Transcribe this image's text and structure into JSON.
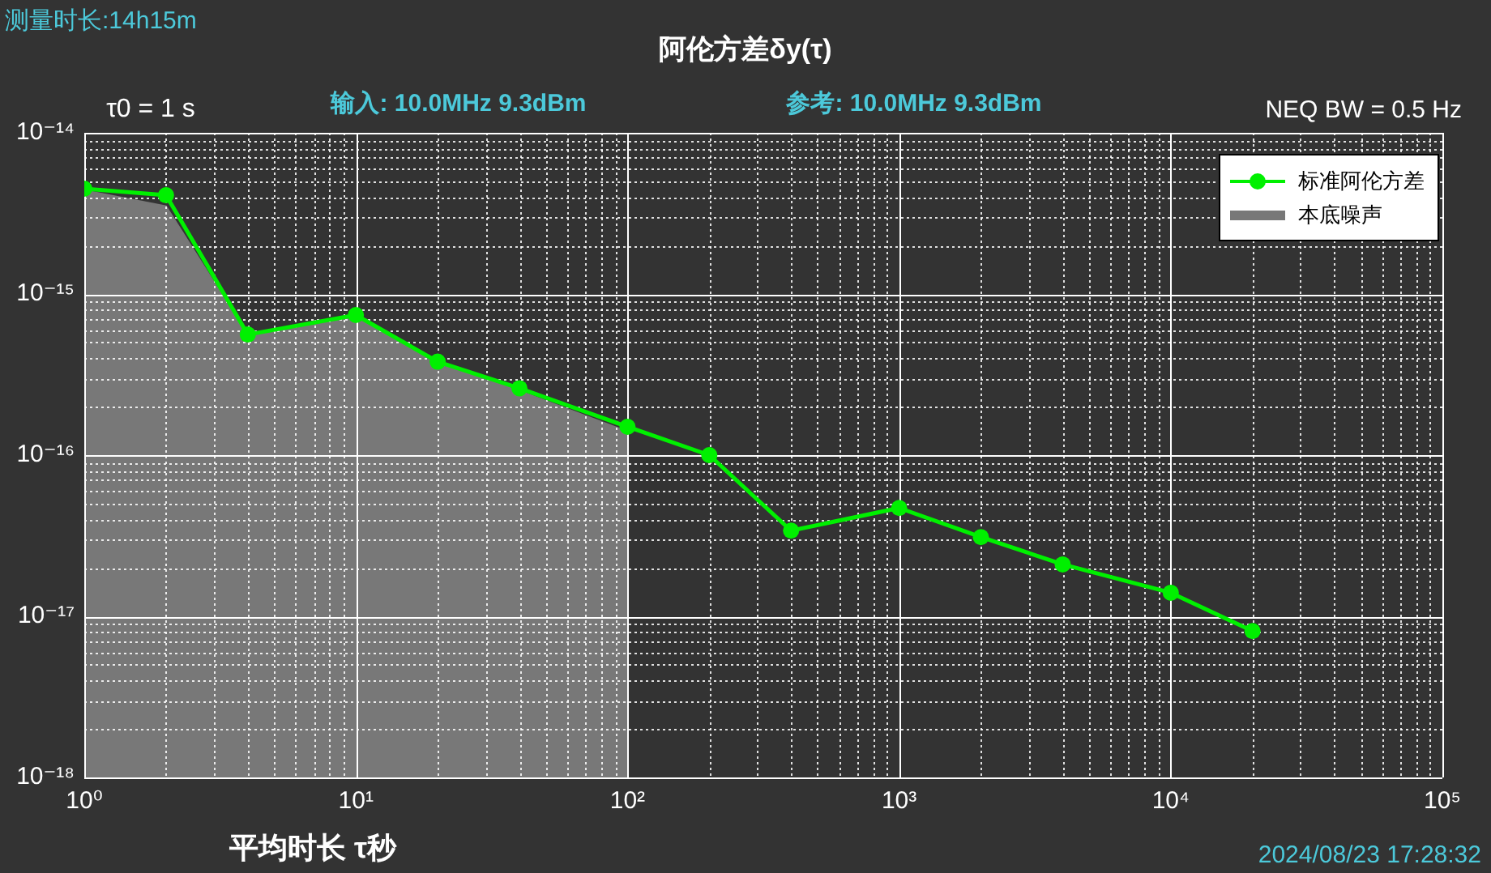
{
  "chart_data": {
    "type": "line",
    "title": "阿伦方差δy(τ)",
    "xlabel": "平均时长 τ秒",
    "annotations": [
      "测量时长:14h15m",
      "τ0 = 1 s",
      "输入: 10.0MHz 9.3dBm",
      "参考: 10.0MHz 9.3dBm",
      "NEQ BW = 0.5 Hz",
      "2024/08/23 17:28:32"
    ],
    "series": [
      {
        "name": "标准阿伦方差",
        "color": "#00f000",
        "marker": "circle",
        "x": [
          1,
          2,
          4,
          10,
          20,
          40,
          100,
          200,
          400,
          1000,
          2000,
          4000,
          10000,
          20000
        ],
        "values": [
          4.5e-15,
          4.1e-15,
          5.6e-16,
          7.4e-16,
          3.8e-16,
          2.6e-16,
          1.5e-16,
          1e-16,
          3.4e-17,
          4.7e-17,
          3.1e-17,
          2.1e-17,
          1.4e-17,
          8.1e-18
        ]
      },
      {
        "name": "本底噪声",
        "type": "area",
        "color": "#787878",
        "x": [
          1,
          2,
          4,
          10,
          20,
          40,
          100
        ],
        "values": [
          4.4e-15,
          3.5e-15,
          5.5e-16,
          7.2e-16,
          3.7e-16,
          2.5e-16,
          1.4e-16
        ]
      }
    ],
    "xlim": [
      1,
      100000
    ],
    "ylim": [
      1e-18,
      1e-14
    ],
    "xticks": [
      {
        "value": 1,
        "label": "10⁰"
      },
      {
        "value": 2,
        "label": null
      },
      {
        "value": 3,
        "label": null
      },
      {
        "value": 4,
        "label": null
      },
      {
        "value": 5,
        "label": null
      },
      {
        "value": 6,
        "label": null
      },
      {
        "value": 7,
        "label": null
      },
      {
        "value": 8,
        "label": null
      },
      {
        "value": 9,
        "label": null
      },
      {
        "value": 10,
        "label": "10¹"
      },
      {
        "value": 20,
        "label": null
      },
      {
        "value": 30,
        "label": null
      },
      {
        "value": 40,
        "label": null
      },
      {
        "value": 50,
        "label": null
      },
      {
        "value": 60,
        "label": null
      },
      {
        "value": 70,
        "label": null
      },
      {
        "value": 80,
        "label": null
      },
      {
        "value": 90,
        "label": null
      },
      {
        "value": 100,
        "label": "10²"
      },
      {
        "value": 200,
        "label": null
      },
      {
        "value": 300,
        "label": null
      },
      {
        "value": 400,
        "label": null
      },
      {
        "value": 500,
        "label": null
      },
      {
        "value": 600,
        "label": null
      },
      {
        "value": 700,
        "label": null
      },
      {
        "value": 800,
        "label": null
      },
      {
        "value": 900,
        "label": null
      },
      {
        "value": 1000,
        "label": "10³"
      },
      {
        "value": 2000,
        "label": null
      },
      {
        "value": 3000,
        "label": null
      },
      {
        "value": 4000,
        "label": null
      },
      {
        "value": 5000,
        "label": null
      },
      {
        "value": 6000,
        "label": null
      },
      {
        "value": 7000,
        "label": null
      },
      {
        "value": 8000,
        "label": null
      },
      {
        "value": 9000,
        "label": null
      },
      {
        "value": 10000,
        "label": "10⁴"
      },
      {
        "value": 20000,
        "label": null
      },
      {
        "value": 30000,
        "label": null
      },
      {
        "value": 40000,
        "label": null
      },
      {
        "value": 50000,
        "label": null
      },
      {
        "value": 60000,
        "label": null
      },
      {
        "value": 70000,
        "label": null
      },
      {
        "value": 80000,
        "label": null
      },
      {
        "value": 90000,
        "label": null
      },
      {
        "value": 100000,
        "label": "10⁵"
      }
    ],
    "yticks": [
      {
        "value": 1e-18,
        "label": "10⁻¹⁸"
      },
      {
        "value": 2e-18,
        "label": null
      },
      {
        "value": 3e-18,
        "label": null
      },
      {
        "value": 4e-18,
        "label": null
      },
      {
        "value": 5e-18,
        "label": null
      },
      {
        "value": 6e-18,
        "label": null
      },
      {
        "value": 7e-18,
        "label": null
      },
      {
        "value": 8e-18,
        "label": null
      },
      {
        "value": 9e-18,
        "label": null
      },
      {
        "value": 1e-17,
        "label": "10⁻¹⁷"
      },
      {
        "value": 2e-17,
        "label": null
      },
      {
        "value": 3e-17,
        "label": null
      },
      {
        "value": 4e-17,
        "label": null
      },
      {
        "value": 5e-17,
        "label": null
      },
      {
        "value": 6e-17,
        "label": null
      },
      {
        "value": 7e-17,
        "label": null
      },
      {
        "value": 8e-17,
        "label": null
      },
      {
        "value": 9e-17,
        "label": null
      },
      {
        "value": 1e-16,
        "label": "10⁻¹⁶"
      },
      {
        "value": 2e-16,
        "label": null
      },
      {
        "value": 3e-16,
        "label": null
      },
      {
        "value": 4e-16,
        "label": null
      },
      {
        "value": 5e-16,
        "label": null
      },
      {
        "value": 6e-16,
        "label": null
      },
      {
        "value": 7e-16,
        "label": null
      },
      {
        "value": 8e-16,
        "label": null
      },
      {
        "value": 9e-16,
        "label": null
      },
      {
        "value": 1e-15,
        "label": "10⁻¹⁵"
      },
      {
        "value": 2e-15,
        "label": null
      },
      {
        "value": 3e-15,
        "label": null
      },
      {
        "value": 4e-15,
        "label": null
      },
      {
        "value": 5e-15,
        "label": null
      },
      {
        "value": 6e-15,
        "label": null
      },
      {
        "value": 7e-15,
        "label": null
      },
      {
        "value": 8e-15,
        "label": null
      },
      {
        "value": 9e-15,
        "label": null
      },
      {
        "value": 1e-14,
        "label": "10⁻¹⁴"
      }
    ],
    "log": "xy",
    "grid": true,
    "legend": "top right"
  }
}
